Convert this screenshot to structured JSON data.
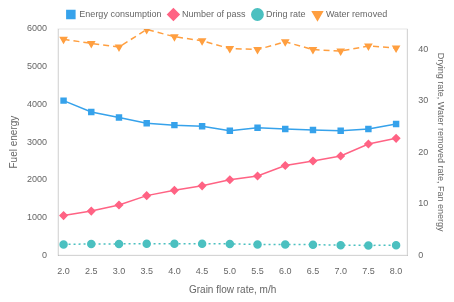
{
  "chart_data": {
    "type": "line",
    "xlabel": "Grain flow rate, m/h",
    "ylabel": "Fuel energy",
    "y2label": "Drying rate, Water removed rate, Fan energy",
    "x": [
      2.0,
      2.5,
      3.0,
      3.5,
      4.0,
      4.5,
      5.0,
      5.5,
      6.0,
      6.5,
      7.0,
      7.5,
      8.0
    ],
    "series": [
      {
        "name": "Energy consumption",
        "values": [
          4100,
          3800,
          3650,
          3500,
          3450,
          3420,
          3300,
          3380,
          3350,
          3320,
          3300,
          3350,
          3480
        ],
        "marker": "square",
        "line_style": "solid"
      },
      {
        "name": "Number of pass",
        "values": [
          1050,
          1170,
          1330,
          1580,
          1720,
          1840,
          2000,
          2100,
          2380,
          2500,
          2630,
          2950,
          3100
        ],
        "marker": "diamond",
        "line_style": "solid"
      },
      {
        "name": "Dring rate",
        "values": [
          2.1,
          2.2,
          2.2,
          2.25,
          2.25,
          2.25,
          2.2,
          2.1,
          2.1,
          2.05,
          1.95,
          1.9,
          1.95
        ],
        "marker": "circle",
        "line_style": "dotted",
        "axis": "y2"
      },
      {
        "name": "Water removed",
        "values": [
          42.0,
          41.2,
          40.5,
          43.9,
          42.5,
          41.7,
          40.2,
          40.0,
          41.5,
          40.0,
          39.7,
          40.7,
          40.3
        ],
        "marker": "triangle_down",
        "line_style": "dashed",
        "axis": "y2"
      }
    ],
    "xlim": [
      1.9,
      8.2
    ],
    "xticks": [
      {
        "value": 2.0,
        "label": "2.0"
      },
      {
        "value": 2.5,
        "label": "2.5"
      },
      {
        "value": 3.0,
        "label": "3.0"
      },
      {
        "value": 3.5,
        "label": "3.5"
      },
      {
        "value": 4.0,
        "label": "4.0"
      },
      {
        "value": 4.5,
        "label": "4.5"
      },
      {
        "value": 5.0,
        "label": "5.0"
      },
      {
        "value": 5.5,
        "label": "5.5"
      },
      {
        "value": 6.0,
        "label": "6.0"
      },
      {
        "value": 6.5,
        "label": "6.5"
      },
      {
        "value": 7.0,
        "label": "7.0"
      },
      {
        "value": 7.5,
        "label": "7.5"
      },
      {
        "value": 8.0,
        "label": "8.0"
      }
    ],
    "ylim": [
      0,
      6000
    ],
    "yticks": [
      0,
      1000,
      2000,
      3000,
      4000,
      5000,
      6000
    ],
    "y2lim": [
      0,
      44
    ],
    "y2ticks": [
      0,
      10,
      20,
      30,
      40
    ],
    "grid": false,
    "legend": "top"
  }
}
